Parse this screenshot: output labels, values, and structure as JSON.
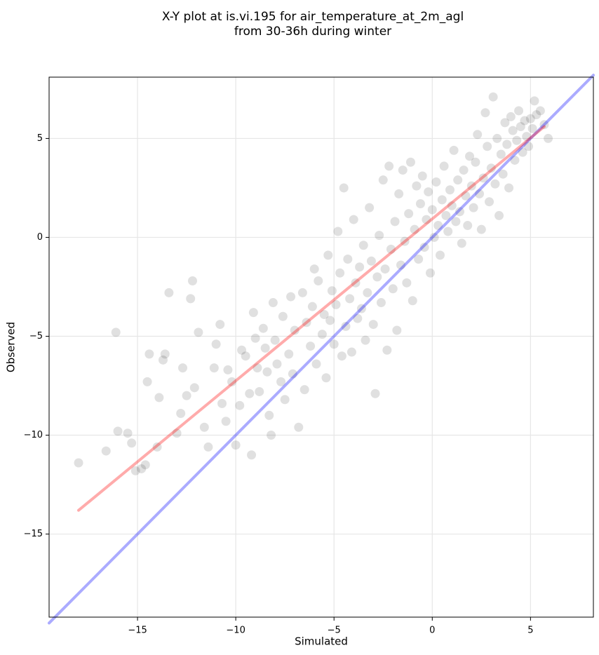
{
  "chart_data": {
    "type": "scatter",
    "title_lines": [
      "X-Y plot at is.vi.195 for air_temperature_at_2m_agl",
      "from 30-36h during winter"
    ],
    "xlabel": "Simulated",
    "ylabel": "Observed",
    "xlim": [
      -19.5,
      8.2
    ],
    "ylim": [
      -19.2,
      8.1
    ],
    "xticks": [
      -15,
      -10,
      -5,
      0,
      5
    ],
    "yticks": [
      -15,
      -10,
      -5,
      0,
      5
    ],
    "tick_labels_x": [
      "−15",
      "−10",
      "−5",
      "0",
      "5"
    ],
    "tick_labels_y": [
      "−15",
      "−10",
      "−5",
      "0",
      "5"
    ],
    "grid": true,
    "colors": {
      "points": "#000000",
      "identity_line": "#0000ff",
      "fit_line": "#ff0000",
      "grid": "#e6e6e6"
    },
    "series": [
      {
        "type": "scatter",
        "points": [
          [
            -18.0,
            -11.4
          ],
          [
            -16.6,
            -10.8
          ],
          [
            -16.1,
            -4.8
          ],
          [
            -16.0,
            -9.8
          ],
          [
            -15.5,
            -9.9
          ],
          [
            -15.3,
            -10.4
          ],
          [
            -15.1,
            -11.8
          ],
          [
            -14.8,
            -11.7
          ],
          [
            -14.6,
            -11.5
          ],
          [
            -14.5,
            -7.3
          ],
          [
            -14.4,
            -5.9
          ],
          [
            -14.0,
            -10.6
          ],
          [
            -13.9,
            -8.1
          ],
          [
            -13.7,
            -6.2
          ],
          [
            -13.6,
            -5.9
          ],
          [
            -13.4,
            -2.8
          ],
          [
            -13.0,
            -9.9
          ],
          [
            -12.8,
            -8.9
          ],
          [
            -12.7,
            -6.6
          ],
          [
            -12.5,
            -8.0
          ],
          [
            -12.3,
            -3.1
          ],
          [
            -12.2,
            -2.2
          ],
          [
            -12.1,
            -7.6
          ],
          [
            -11.9,
            -4.8
          ],
          [
            -11.6,
            -9.6
          ],
          [
            -11.4,
            -10.6
          ],
          [
            -11.1,
            -6.6
          ],
          [
            -11.0,
            -5.4
          ],
          [
            -10.8,
            -4.4
          ],
          [
            -10.7,
            -8.4
          ],
          [
            -10.5,
            -9.3
          ],
          [
            -10.4,
            -6.7
          ],
          [
            -10.2,
            -7.3
          ],
          [
            -10.0,
            -10.5
          ],
          [
            -9.8,
            -8.5
          ],
          [
            -9.7,
            -5.7
          ],
          [
            -9.5,
            -6.0
          ],
          [
            -9.3,
            -7.9
          ],
          [
            -9.2,
            -11.0
          ],
          [
            -9.1,
            -3.8
          ],
          [
            -9.0,
            -5.1
          ],
          [
            -8.9,
            -6.6
          ],
          [
            -8.8,
            -7.8
          ],
          [
            -8.6,
            -4.6
          ],
          [
            -8.5,
            -5.6
          ],
          [
            -8.4,
            -6.8
          ],
          [
            -8.3,
            -9.0
          ],
          [
            -8.2,
            -10.0
          ],
          [
            -8.1,
            -3.3
          ],
          [
            -8.0,
            -5.2
          ],
          [
            -7.9,
            -6.4
          ],
          [
            -7.7,
            -7.3
          ],
          [
            -7.6,
            -4.0
          ],
          [
            -7.5,
            -8.2
          ],
          [
            -7.3,
            -5.9
          ],
          [
            -7.2,
            -3.0
          ],
          [
            -7.1,
            -6.9
          ],
          [
            -7.0,
            -4.7
          ],
          [
            -6.8,
            -9.6
          ],
          [
            -6.6,
            -2.8
          ],
          [
            -6.5,
            -7.7
          ],
          [
            -6.4,
            -4.3
          ],
          [
            -6.2,
            -5.5
          ],
          [
            -6.1,
            -3.5
          ],
          [
            -6.0,
            -1.6
          ],
          [
            -5.9,
            -6.4
          ],
          [
            -5.8,
            -2.2
          ],
          [
            -5.6,
            -4.9
          ],
          [
            -5.5,
            -3.9
          ],
          [
            -5.4,
            -7.1
          ],
          [
            -5.3,
            -0.9
          ],
          [
            -5.2,
            -4.2
          ],
          [
            -5.1,
            -2.7
          ],
          [
            -5.0,
            -5.4
          ],
          [
            -4.9,
            -3.4
          ],
          [
            -4.8,
            0.3
          ],
          [
            -4.7,
            -1.8
          ],
          [
            -4.6,
            -6.0
          ],
          [
            -4.5,
            2.5
          ],
          [
            -4.4,
            -4.5
          ],
          [
            -4.3,
            -1.1
          ],
          [
            -4.2,
            -3.1
          ],
          [
            -4.1,
            -5.8
          ],
          [
            -4.0,
            0.9
          ],
          [
            -3.9,
            -2.3
          ],
          [
            -3.8,
            -4.1
          ],
          [
            -3.7,
            -1.5
          ],
          [
            -3.6,
            -3.6
          ],
          [
            -3.5,
            -0.4
          ],
          [
            -3.4,
            -5.2
          ],
          [
            -3.3,
            -2.8
          ],
          [
            -3.2,
            1.5
          ],
          [
            -3.1,
            -1.2
          ],
          [
            -3.0,
            -4.4
          ],
          [
            -2.9,
            -7.9
          ],
          [
            -2.8,
            -2.0
          ],
          [
            -2.7,
            0.1
          ],
          [
            -2.6,
            -3.3
          ],
          [
            -2.5,
            2.9
          ],
          [
            -2.4,
            -1.6
          ],
          [
            -2.3,
            -5.7
          ],
          [
            -2.2,
            3.6
          ],
          [
            -2.1,
            -0.6
          ],
          [
            -2.0,
            -2.6
          ],
          [
            -1.9,
            0.8
          ],
          [
            -1.8,
            -4.7
          ],
          [
            -1.7,
            2.2
          ],
          [
            -1.6,
            -1.4
          ],
          [
            -1.5,
            3.4
          ],
          [
            -1.4,
            -0.2
          ],
          [
            -1.3,
            -2.3
          ],
          [
            -1.2,
            1.2
          ],
          [
            -1.1,
            3.8
          ],
          [
            -1.0,
            -3.2
          ],
          [
            -0.9,
            0.4
          ],
          [
            -0.8,
            2.6
          ],
          [
            -0.7,
            -1.1
          ],
          [
            -0.6,
            1.7
          ],
          [
            -0.5,
            3.1
          ],
          [
            -0.4,
            -0.5
          ],
          [
            -0.3,
            0.9
          ],
          [
            -0.2,
            2.3
          ],
          [
            -0.1,
            -1.8
          ],
          [
            0.0,
            1.4
          ],
          [
            0.1,
            0.0
          ],
          [
            0.2,
            2.8
          ],
          [
            0.3,
            0.6
          ],
          [
            0.4,
            -0.9
          ],
          [
            0.5,
            1.9
          ],
          [
            0.6,
            3.6
          ],
          [
            0.7,
            1.1
          ],
          [
            0.8,
            0.3
          ],
          [
            0.9,
            2.4
          ],
          [
            1.0,
            1.6
          ],
          [
            1.1,
            4.4
          ],
          [
            1.2,
            0.8
          ],
          [
            1.3,
            2.9
          ],
          [
            1.4,
            1.3
          ],
          [
            1.5,
            -0.3
          ],
          [
            1.6,
            3.4
          ],
          [
            1.7,
            2.1
          ],
          [
            1.8,
            0.6
          ],
          [
            1.9,
            4.1
          ],
          [
            2.0,
            2.6
          ],
          [
            2.1,
            1.5
          ],
          [
            2.2,
            3.8
          ],
          [
            2.3,
            5.2
          ],
          [
            2.4,
            2.2
          ],
          [
            2.5,
            0.4
          ],
          [
            2.6,
            3.0
          ],
          [
            2.7,
            6.3
          ],
          [
            2.8,
            4.6
          ],
          [
            2.9,
            1.8
          ],
          [
            3.0,
            3.5
          ],
          [
            3.1,
            7.1
          ],
          [
            3.2,
            2.7
          ],
          [
            3.3,
            5.0
          ],
          [
            3.4,
            1.1
          ],
          [
            3.5,
            4.2
          ],
          [
            3.6,
            3.2
          ],
          [
            3.7,
            5.8
          ],
          [
            3.8,
            4.7
          ],
          [
            3.9,
            2.5
          ],
          [
            4.0,
            6.1
          ],
          [
            4.1,
            5.4
          ],
          [
            4.2,
            3.9
          ],
          [
            4.3,
            4.9
          ],
          [
            4.4,
            6.4
          ],
          [
            4.5,
            5.6
          ],
          [
            4.6,
            4.3
          ],
          [
            4.7,
            5.9
          ],
          [
            4.8,
            5.1
          ],
          [
            4.9,
            4.6
          ],
          [
            5.0,
            6.0
          ],
          [
            5.1,
            5.5
          ],
          [
            5.2,
            6.9
          ],
          [
            5.3,
            6.2
          ],
          [
            5.5,
            6.4
          ],
          [
            5.7,
            5.7
          ],
          [
            5.9,
            5.0
          ]
        ]
      },
      {
        "type": "line",
        "role": "identity",
        "x": [
          -19.5,
          8.2
        ],
        "y": [
          -19.5,
          8.2
        ]
      },
      {
        "type": "line",
        "role": "fit",
        "x": [
          -18.0,
          5.7
        ],
        "y": [
          -13.8,
          5.6
        ]
      }
    ]
  }
}
